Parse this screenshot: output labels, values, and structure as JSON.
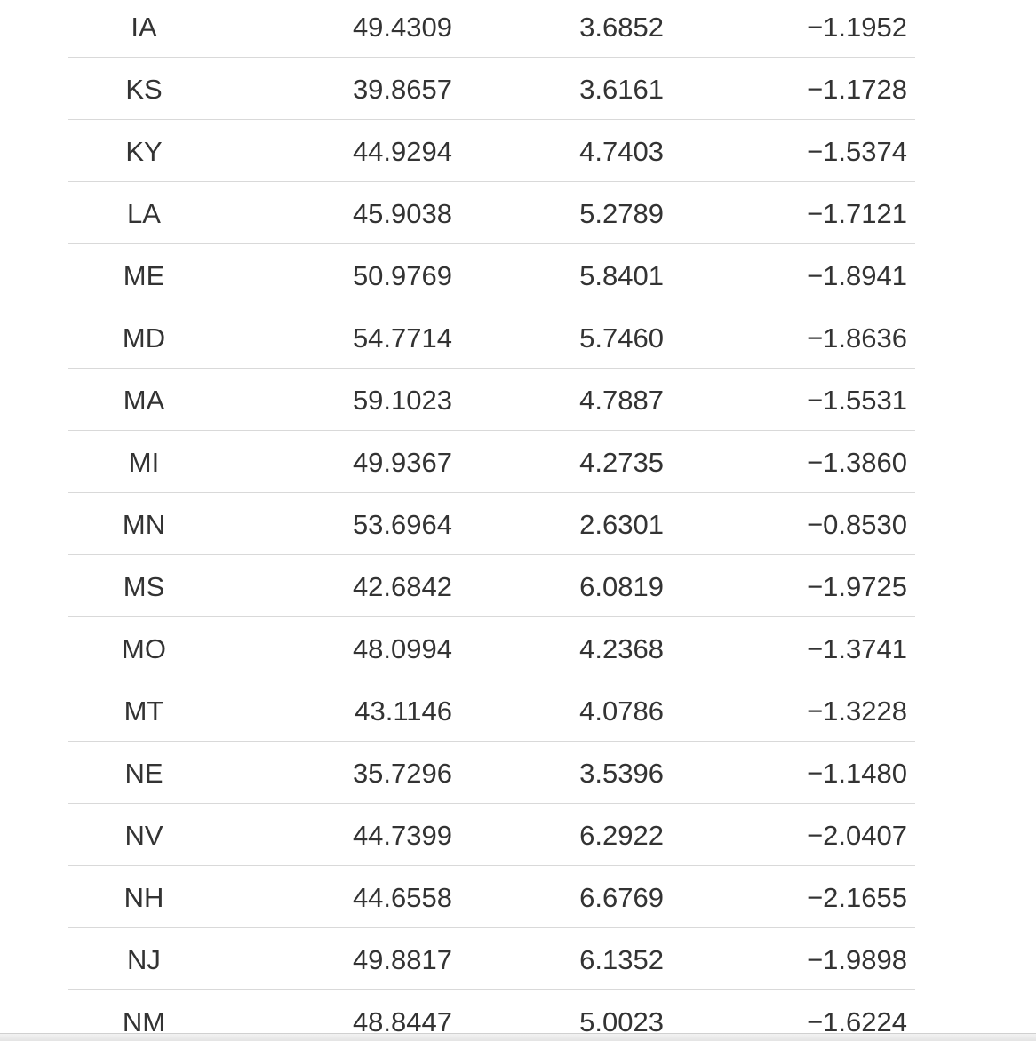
{
  "table": {
    "rows": [
      [
        "IA",
        "49.4309",
        "3.6852",
        "−1.1952"
      ],
      [
        "KS",
        "39.8657",
        "3.6161",
        "−1.1728"
      ],
      [
        "KY",
        "44.9294",
        "4.7403",
        "−1.5374"
      ],
      [
        "LA",
        "45.9038",
        "5.2789",
        "−1.7121"
      ],
      [
        "ME",
        "50.9769",
        "5.8401",
        "−1.8941"
      ],
      [
        "MD",
        "54.7714",
        "5.7460",
        "−1.8636"
      ],
      [
        "MA",
        "59.1023",
        "4.7887",
        "−1.5531"
      ],
      [
        "MI",
        "49.9367",
        "4.2735",
        "−1.3860"
      ],
      [
        "MN",
        "53.6964",
        "2.6301",
        "−0.8530"
      ],
      [
        "MS",
        "42.6842",
        "6.0819",
        "−1.9725"
      ],
      [
        "MO",
        "48.0994",
        "4.2368",
        "−1.3741"
      ],
      [
        "MT",
        "43.1146",
        "4.0786",
        "−1.3228"
      ],
      [
        "NE",
        "35.7296",
        "3.5396",
        "−1.1480"
      ],
      [
        "NV",
        "44.7399",
        "6.2922",
        "−2.0407"
      ],
      [
        "NH",
        "44.6558",
        "6.6769",
        "−2.1655"
      ],
      [
        "NJ",
        "49.8817",
        "6.1352",
        "−1.9898"
      ],
      [
        "NM",
        "48.8447",
        "5.0023",
        "−1.6224"
      ]
    ]
  },
  "colors": {
    "text": "#333333",
    "row_border": "#d9d9d9",
    "background": "#ffffff"
  }
}
